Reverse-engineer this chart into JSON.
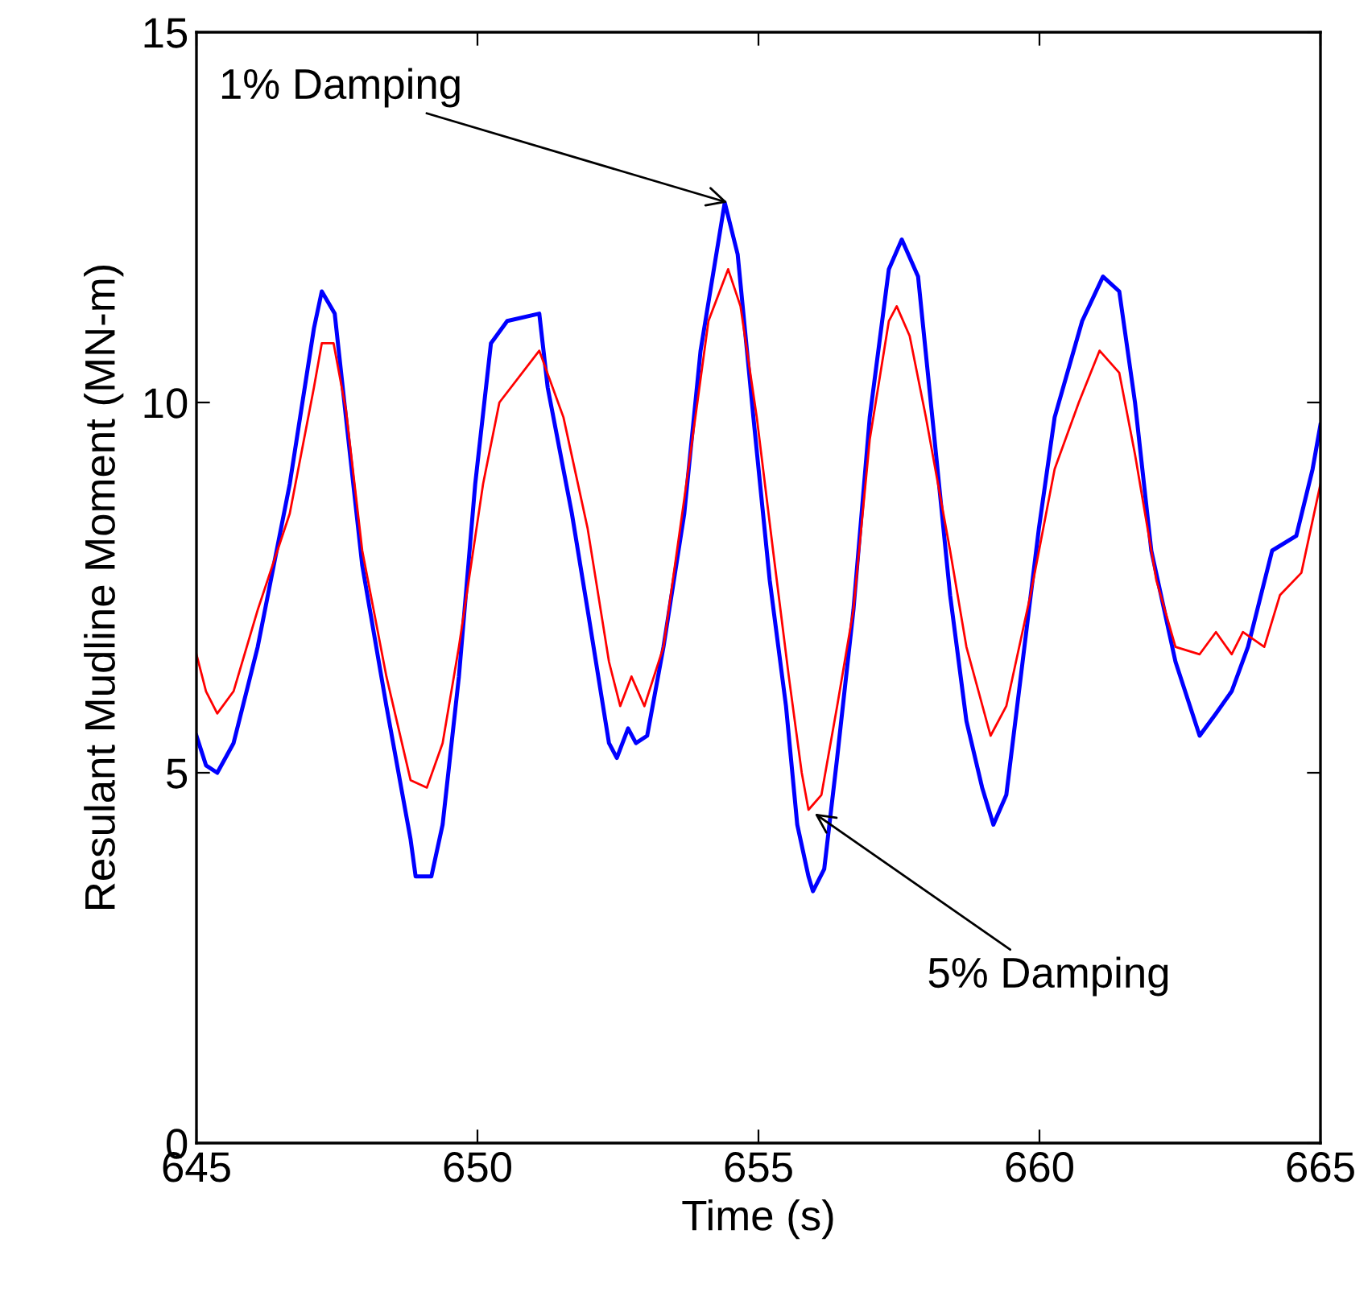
{
  "chart_data": {
    "type": "line",
    "xlabel": "Time (s)",
    "ylabel": "Resulant Mudline Moment (MN-m)",
    "xlim": [
      645,
      665
    ],
    "ylim": [
      0,
      15
    ],
    "xticks": [
      645,
      650,
      655,
      660,
      665
    ],
    "yticks": [
      0,
      5,
      10,
      15
    ],
    "grid": false,
    "legend": false,
    "series": [
      {
        "color": "#0000ff",
        "x": [
          645.0,
          645.17,
          645.37,
          645.66,
          646.09,
          646.66,
          647.09,
          647.23,
          647.46,
          647.66,
          647.95,
          648.38,
          648.81,
          648.9,
          649.18,
          649.38,
          649.67,
          649.96,
          650.24,
          650.53,
          651.1,
          651.25,
          651.68,
          651.96,
          652.34,
          652.48,
          652.68,
          652.82,
          653.02,
          653.31,
          653.68,
          653.97,
          654.4,
          654.63,
          654.91,
          655.2,
          655.49,
          655.69,
          655.89,
          655.97,
          656.17,
          656.4,
          656.69,
          656.98,
          657.32,
          657.55,
          657.84,
          658.12,
          658.41,
          658.7,
          658.98,
          659.18,
          659.41,
          659.7,
          659.99,
          660.27,
          660.76,
          661.13,
          661.42,
          661.7,
          661.99,
          662.42,
          662.85,
          663.14,
          663.42,
          663.71,
          664.14,
          664.57,
          664.86,
          665.0
        ],
        "values": [
          5.5,
          5.1,
          5.0,
          5.4,
          6.7,
          8.9,
          11.0,
          11.5,
          11.2,
          9.8,
          7.8,
          5.9,
          4.1,
          3.6,
          3.6,
          4.3,
          6.3,
          8.9,
          10.8,
          11.1,
          11.2,
          10.2,
          8.5,
          7.2,
          5.4,
          5.2,
          5.6,
          5.4,
          5.5,
          6.7,
          8.5,
          10.7,
          12.7,
          12.0,
          9.8,
          7.6,
          5.9,
          4.3,
          3.6,
          3.4,
          3.7,
          5.2,
          7.2,
          9.8,
          11.8,
          12.2,
          11.7,
          9.6,
          7.4,
          5.7,
          4.8,
          4.3,
          4.7,
          6.5,
          8.3,
          9.8,
          11.1,
          11.7,
          11.5,
          10.0,
          8.0,
          6.5,
          5.5,
          5.8,
          6.1,
          6.7,
          8.0,
          8.2,
          9.1,
          9.7
        ]
      },
      {
        "color": "#ff0000",
        "x": [
          645.0,
          645.17,
          645.37,
          645.66,
          646.09,
          646.66,
          647.09,
          647.23,
          647.44,
          647.66,
          647.95,
          648.38,
          648.81,
          649.1,
          649.38,
          649.67,
          650.1,
          650.39,
          651.1,
          651.53,
          651.96,
          652.34,
          652.54,
          652.74,
          652.97,
          653.31,
          653.68,
          654.11,
          654.46,
          654.68,
          654.97,
          655.26,
          655.54,
          655.77,
          655.89,
          656.12,
          656.4,
          656.69,
          656.98,
          657.32,
          657.46,
          657.69,
          657.98,
          658.41,
          658.7,
          659.13,
          659.41,
          659.84,
          660.27,
          660.7,
          661.07,
          661.42,
          661.7,
          662.08,
          662.42,
          662.85,
          663.14,
          663.42,
          663.62,
          664.0,
          664.28,
          664.66,
          665.0
        ],
        "values": [
          6.6,
          6.1,
          5.8,
          6.1,
          7.2,
          8.5,
          10.2,
          10.8,
          10.8,
          9.9,
          8.0,
          6.3,
          4.9,
          4.8,
          5.4,
          6.7,
          8.9,
          10.0,
          10.7,
          9.8,
          8.3,
          6.5,
          5.9,
          6.3,
          5.9,
          6.7,
          8.7,
          11.1,
          11.8,
          11.3,
          9.8,
          8.0,
          6.3,
          5.0,
          4.5,
          4.7,
          5.9,
          7.2,
          9.5,
          11.1,
          11.3,
          10.9,
          9.8,
          8.0,
          6.7,
          5.5,
          5.9,
          7.4,
          9.1,
          10.0,
          10.7,
          10.4,
          9.3,
          7.6,
          6.7,
          6.6,
          6.9,
          6.6,
          6.9,
          6.7,
          7.4,
          7.7,
          8.9
        ]
      }
    ],
    "annotations": [
      {
        "text": "1% Damping",
        "x": 654.45,
        "y": 12.7
      },
      {
        "text": "5% Damping",
        "x": 656.0,
        "y": 4.45
      }
    ]
  }
}
